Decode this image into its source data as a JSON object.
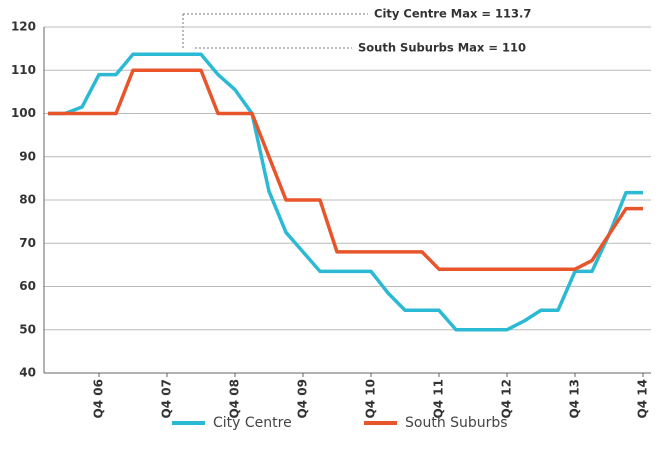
{
  "chart_data": {
    "type": "line",
    "categories": [
      null,
      null,
      null,
      "Q4 06",
      null,
      null,
      null,
      "Q4 07",
      null,
      null,
      null,
      "Q4 08",
      null,
      null,
      null,
      "Q4 09",
      null,
      null,
      null,
      "Q4 10",
      null,
      null,
      null,
      "Q4 11",
      null,
      null,
      null,
      "Q4 12",
      null,
      null,
      null,
      "Q4 13",
      null,
      null,
      null,
      "Q4 14"
    ],
    "series": [
      {
        "name": "City Centre",
        "color": "#2bb9d4",
        "values": [
          100,
          100,
          101.5,
          109,
          109,
          113.7,
          113.7,
          113.7,
          113.7,
          113.7,
          109,
          105.5,
          100,
          82,
          72.5,
          68,
          63.5,
          63.5,
          63.5,
          63.5,
          58.5,
          54.5,
          54.5,
          54.5,
          50,
          50,
          50,
          50,
          52,
          54.5,
          54.5,
          63.5,
          63.5,
          72,
          81.7,
          81.7
        ]
      },
      {
        "name": "South Suburbs",
        "color": "#e8552a",
        "values": [
          100,
          100,
          100,
          100,
          100,
          110,
          110,
          110,
          110,
          110,
          100,
          100,
          100,
          90,
          80,
          80,
          80,
          68,
          68,
          68,
          68,
          68,
          68,
          64,
          64,
          64,
          64,
          64,
          64,
          64,
          64,
          64,
          66,
          72,
          78,
          78
        ]
      }
    ],
    "annotations": [
      "City Centre Max = 113.7",
      "South Suburbs Max = 110"
    ],
    "ylim": [
      40,
      120
    ],
    "yticks": [
      40,
      50,
      60,
      70,
      80,
      90,
      100,
      110,
      120
    ],
    "grid": true
  }
}
